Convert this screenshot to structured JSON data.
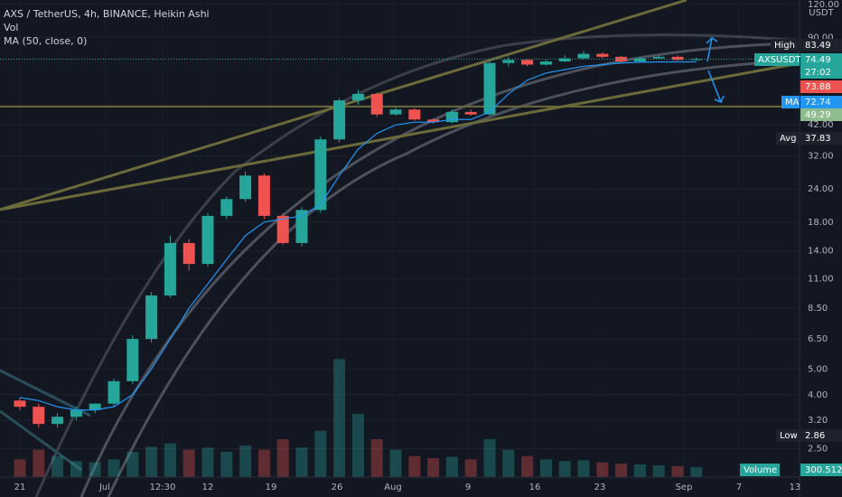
{
  "header": {
    "title": "AXS / TetherUS, 4h, BINANCE, Heikin Ashi",
    "volume_label": "Vol",
    "ma_label": "MA (50, close, 0)",
    "currency": "USDT"
  },
  "chart_data": {
    "type": "candlestick",
    "log_scale": true,
    "grid": true,
    "up_color": "#26a69a",
    "down_color": "#ef5350",
    "ylim": [
      1.95,
      124.7
    ],
    "yticks": [
      {
        "value": 2.5,
        "label": "2.50"
      },
      {
        "value": 3.2,
        "label": "3.20"
      },
      {
        "value": 4,
        "label": "4.00"
      },
      {
        "value": 5,
        "label": "5.00"
      },
      {
        "value": 6.5,
        "label": "6.50"
      },
      {
        "value": 8.5,
        "label": "8.50"
      },
      {
        "value": 11,
        "label": "11.00"
      },
      {
        "value": 14,
        "label": "14.00"
      },
      {
        "value": 18,
        "label": "18.00"
      },
      {
        "value": 24,
        "label": "24.00"
      },
      {
        "value": 32,
        "label": "32.00"
      },
      {
        "value": 42,
        "label": "42.00"
      },
      {
        "value": 90,
        "label": "90.00"
      },
      {
        "value": 120,
        "label": "120.00"
      }
    ],
    "xticks": [
      "21",
      "Jul",
      "12:30",
      "12",
      "19",
      "26",
      "Aug",
      "9",
      "16",
      "23",
      "Sep",
      "7",
      "13"
    ],
    "open": [
      3.8,
      3.6,
      3.1,
      3.3,
      3.5,
      3.7,
      4.5,
      6.5,
      9.5,
      15,
      12.5,
      19,
      22,
      27,
      19,
      15,
      20,
      37,
      52,
      55,
      46,
      48,
      44,
      43,
      47,
      46,
      72,
      74,
      71,
      73,
      75,
      78,
      76,
      73,
      75,
      76,
      74
    ],
    "high": [
      3.9,
      3.7,
      3.4,
      3.6,
      3.7,
      4.6,
      6.7,
      9.8,
      16,
      15.5,
      19.5,
      22.5,
      28,
      27.5,
      19.5,
      20.5,
      38,
      53,
      57,
      55.5,
      49,
      48.5,
      44.5,
      48,
      48,
      73,
      76,
      74.5,
      74,
      77,
      80,
      79,
      76.5,
      76,
      77,
      77,
      75.5
    ],
    "low": [
      3.5,
      3.0,
      3.0,
      3.2,
      3.4,
      3.6,
      4.4,
      6.3,
      9.3,
      11.8,
      12.2,
      18.5,
      21.5,
      18.5,
      14.8,
      14.6,
      19.5,
      36,
      50,
      45,
      45.5,
      43.5,
      42.5,
      42.5,
      45.5,
      45.5,
      70,
      70,
      70.5,
      72.5,
      74.5,
      75,
      72.5,
      72.5,
      74.5,
      73.5,
      73.5
    ],
    "close": [
      3.6,
      3.1,
      3.3,
      3.5,
      3.7,
      4.5,
      6.5,
      9.5,
      15,
      12.5,
      19,
      22,
      27,
      19,
      15,
      20,
      37,
      52,
      55,
      46,
      48,
      44,
      43,
      47,
      46,
      72,
      74,
      71,
      73,
      75,
      78,
      76,
      73,
      75,
      76,
      74,
      74.5
    ],
    "volume": [
      420,
      650,
      500,
      380,
      350,
      420,
      600,
      720,
      800,
      650,
      700,
      600,
      750,
      650,
      900,
      700,
      1100,
      2800,
      1500,
      900,
      650,
      500,
      450,
      480,
      420,
      900,
      650,
      500,
      420,
      380,
      400,
      350,
      320,
      300,
      280,
      260,
      240
    ],
    "vlim": [
      0,
      3000
    ],
    "ma": {
      "name": "MA (50, close, 0)",
      "color": "#2196f3",
      "values": [
        3.9,
        3.8,
        3.6,
        3.5,
        3.5,
        3.6,
        4.0,
        5.0,
        6.5,
        8.5,
        10.5,
        13,
        16,
        18,
        18.5,
        19,
        21,
        27,
        34,
        39,
        42,
        43,
        43,
        44,
        44,
        47,
        55,
        62,
        66,
        68,
        70,
        71,
        72,
        72.5,
        72.7,
        72.7,
        72.74
      ]
    },
    "level_line": 49.29,
    "price_labels": [
      {
        "name": "High",
        "value": 83.49,
        "color": "#1e222d"
      },
      {
        "name": "AXSUSDT",
        "value": 74.49,
        "color": "#26a69a"
      },
      {
        "value": "27:02",
        "color": "#26a69a"
      },
      {
        "value": 73.88,
        "color": "#ef5350"
      },
      {
        "name": "MA",
        "value": 72.74,
        "color": "#2196f3"
      },
      {
        "value": 49.29,
        "color": "#8fbc8f"
      },
      {
        "name": "Avg",
        "value": 37.83,
        "color": "#1e222d"
      },
      {
        "name": "Low",
        "value": 2.86,
        "color": "#1e222d"
      },
      {
        "name": "Volume",
        "value": "300.512K",
        "color": "#26a69a"
      }
    ]
  }
}
